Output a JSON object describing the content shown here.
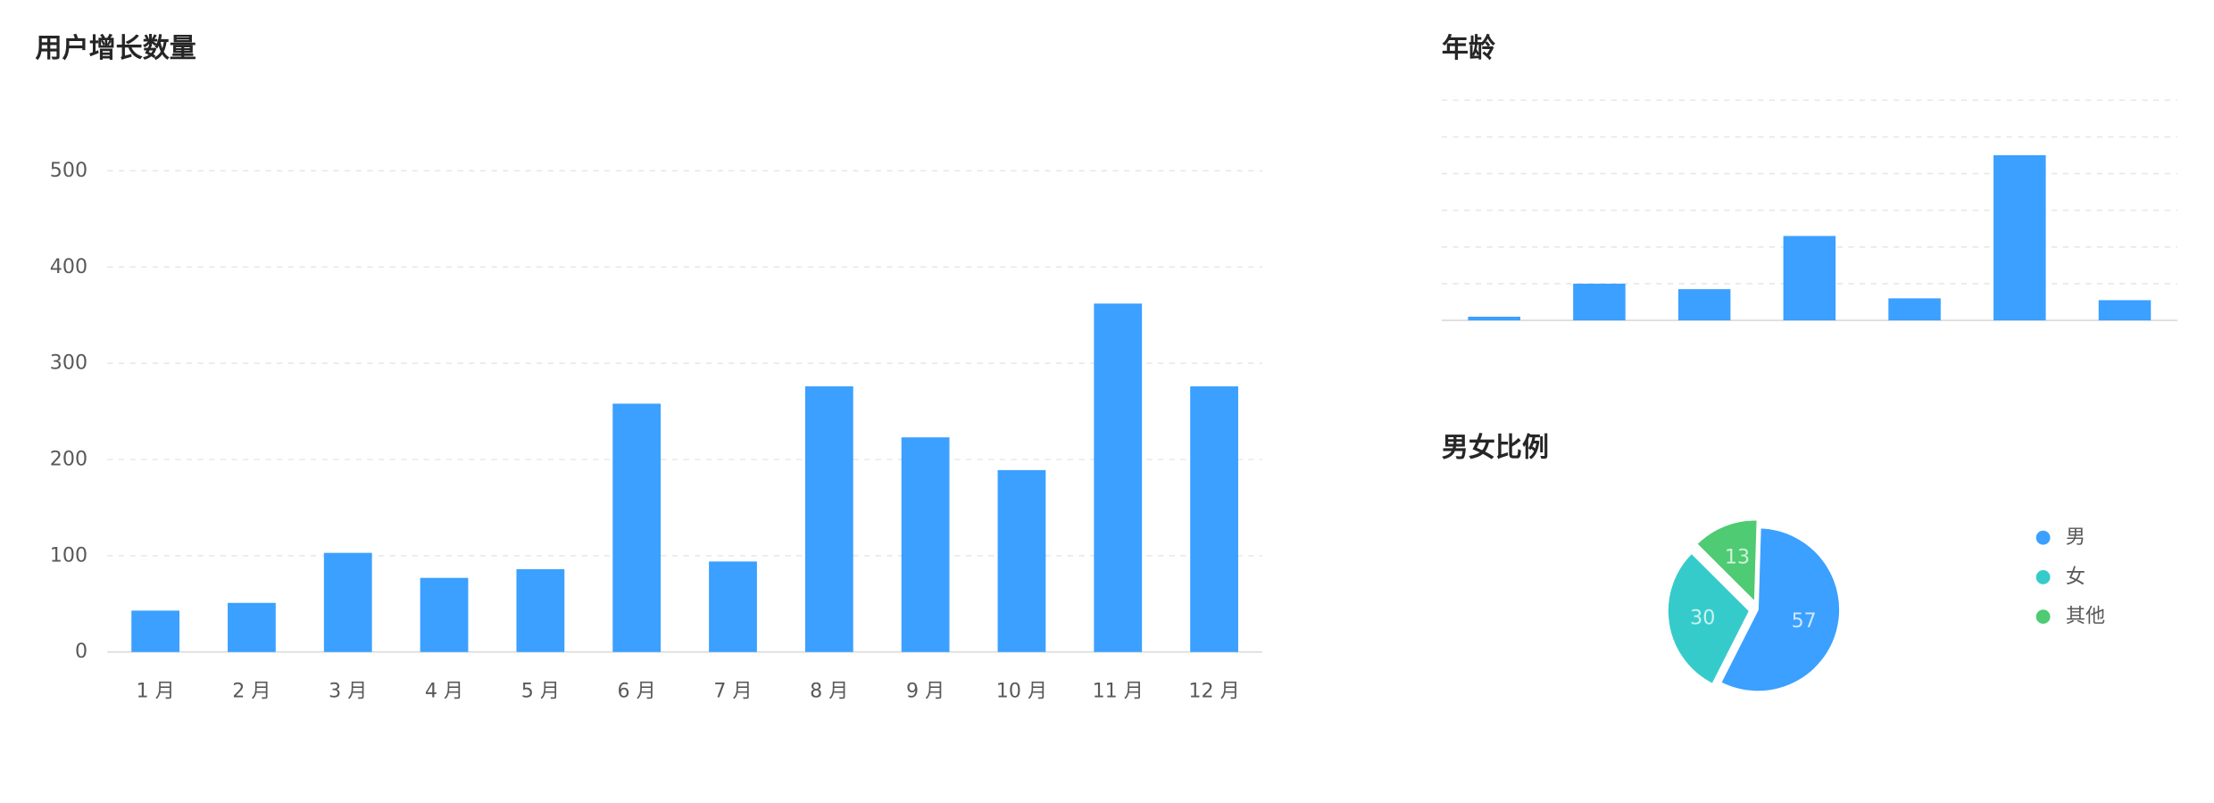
{
  "chart_data": [
    {
      "type": "bar",
      "title": "用户增长数量",
      "categories": [
        "1 月",
        "2 月",
        "3 月",
        "4 月",
        "5 月",
        "6 月",
        "7 月",
        "8 月",
        "9 月",
        "10 月",
        "11 月",
        "12 月"
      ],
      "values": [
        43,
        51,
        103,
        77,
        86,
        258,
        94,
        276,
        223,
        189,
        362,
        276
      ],
      "color": "#3ba0ff",
      "ylim": [
        0,
        500
      ],
      "yticks": [
        0,
        100,
        200,
        300,
        400,
        500
      ],
      "grid": true
    },
    {
      "type": "bar",
      "title": "年龄",
      "categories": [
        null,
        null,
        null,
        null,
        null,
        null,
        null
      ],
      "values": [
        0.1,
        1,
        0.85,
        2.3,
        0.6,
        4.5,
        0.55
      ],
      "color": "#3ba0ff",
      "ylim": [
        0,
        6
      ],
      "yticks": [
        0,
        1,
        2,
        3,
        4,
        5,
        6
      ],
      "grid": true
    },
    {
      "type": "pie",
      "title": "男女比例",
      "series": [
        {
          "name": "男",
          "color": "#3ba0ff",
          "value": 57
        },
        {
          "name": "女",
          "color": "#36cbcb",
          "value": 30
        },
        {
          "name": "其他",
          "color": "#4ecb73",
          "value": 13
        }
      ],
      "legend": "right"
    }
  ]
}
